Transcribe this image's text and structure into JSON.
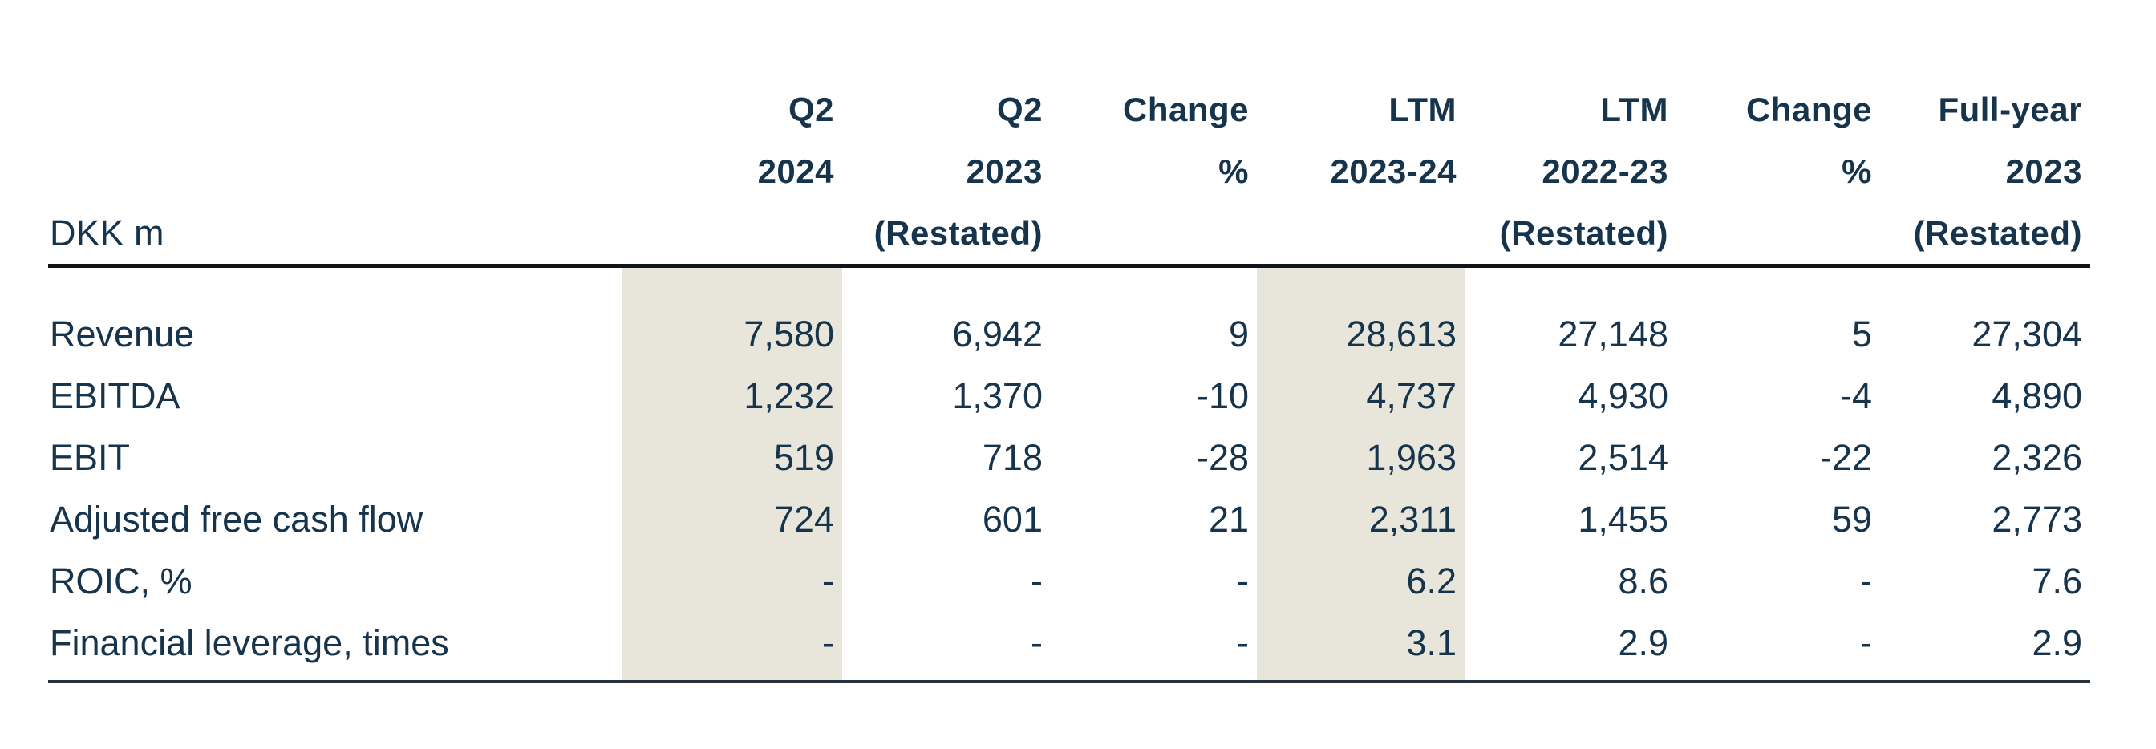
{
  "table": {
    "unit_label": "DKK m",
    "header": {
      "columns": [
        {
          "line1": "Q2",
          "line2": "2024",
          "line3": "",
          "highlighted": true
        },
        {
          "line1": "Q2",
          "line2": "2023",
          "line3": "(Restated)",
          "highlighted": false
        },
        {
          "line1": "Change",
          "line2": "%",
          "line3": "",
          "highlighted": false
        },
        {
          "line1": "LTM",
          "line2": "2023-24",
          "line3": "",
          "highlighted": true
        },
        {
          "line1": "LTM",
          "line2": "2022-23",
          "line3": "(Restated)",
          "highlighted": false
        },
        {
          "line1": "Change",
          "line2": "%",
          "line3": "",
          "highlighted": false
        },
        {
          "line1": "Full-year",
          "line2": "2023",
          "line3": "(Restated)",
          "highlighted": false
        }
      ]
    },
    "rows": [
      {
        "label": "Revenue",
        "values": [
          "7,580",
          "6,942",
          "9",
          "28,613",
          "27,148",
          "5",
          "27,304"
        ]
      },
      {
        "label": "EBITDA",
        "values": [
          "1,232",
          "1,370",
          "-10",
          "4,737",
          "4,930",
          "-4",
          "4,890"
        ]
      },
      {
        "label": "EBIT",
        "values": [
          "519",
          "718",
          "-28",
          "1,963",
          "2,514",
          "-22",
          "2,326"
        ]
      },
      {
        "label": "Adjusted free cash flow",
        "values": [
          "724",
          "601",
          "21",
          "2,311",
          "1,455",
          "59",
          "2,773"
        ]
      },
      {
        "label": "ROIC, %",
        "values": [
          "-",
          "-",
          "-",
          "6.2",
          "8.6",
          "-",
          "7.6"
        ]
      },
      {
        "label": "Financial leverage, times",
        "values": [
          "-",
          "-",
          "-",
          "3.1",
          "2.9",
          "-",
          "2.9"
        ]
      }
    ],
    "colors": {
      "text": "#17344d",
      "highlight_band": "#e8e6da",
      "header_rule": "#10151a",
      "bottom_rule": "#27323c",
      "background": "#ffffff"
    }
  }
}
